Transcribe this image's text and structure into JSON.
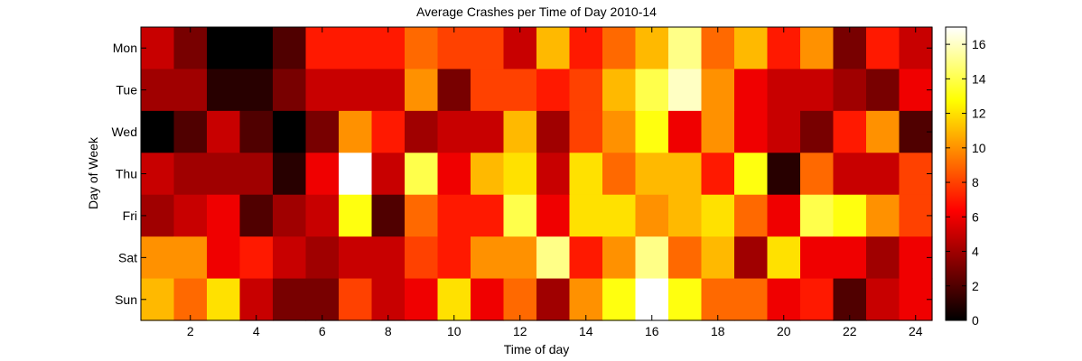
{
  "chart_data": {
    "type": "heatmap",
    "title": "Average Crashes per Time of Day 2010-14",
    "xlabel": "Time of day",
    "ylabel": "Day of Week",
    "rows": [
      "Mon",
      "Tue",
      "Wed",
      "Thu",
      "Fri",
      "Sat",
      "Sun"
    ],
    "x": [
      1,
      2,
      3,
      4,
      5,
      6,
      7,
      8,
      9,
      10,
      11,
      12,
      13,
      14,
      15,
      16,
      17,
      18,
      19,
      20,
      21,
      22,
      23,
      24
    ],
    "xticks": [
      2,
      4,
      6,
      8,
      10,
      12,
      14,
      16,
      18,
      20,
      22,
      24
    ],
    "colorbar": {
      "min": 0,
      "max": 17,
      "ticks": [
        0,
        2,
        4,
        6,
        8,
        10,
        12,
        14,
        16
      ],
      "colormap": "hot"
    },
    "values": [
      [
        5,
        3,
        0,
        0,
        2,
        7,
        7,
        7,
        9,
        8,
        8,
        5,
        11,
        7,
        9,
        11,
        15,
        9,
        11,
        7,
        10,
        3,
        7,
        5
      ],
      [
        4,
        4,
        1,
        1,
        3,
        5,
        5,
        5,
        10,
        3,
        8,
        8,
        7,
        8,
        11,
        14,
        16,
        10,
        6,
        5,
        5,
        4,
        3,
        6
      ],
      [
        0,
        2,
        5,
        2,
        0,
        3,
        10,
        7,
        4,
        5,
        5,
        11,
        4,
        8,
        10,
        13,
        6,
        10,
        6,
        5,
        3,
        7,
        10,
        2
      ],
      [
        5,
        4,
        4,
        4,
        1,
        6,
        17,
        5,
        14,
        6,
        11,
        12,
        5,
        12,
        9,
        11,
        11,
        7,
        13,
        1,
        9,
        5,
        5,
        8
      ],
      [
        4,
        5,
        6,
        2,
        4,
        5,
        13,
        2,
        9,
        7,
        7,
        14,
        6,
        12,
        12,
        10,
        11,
        12,
        9,
        6,
        14,
        13,
        10,
        8
      ],
      [
        10,
        10,
        6,
        7,
        5,
        4,
        5,
        5,
        8,
        7,
        10,
        10,
        15,
        7,
        10,
        15,
        9,
        11,
        4,
        12,
        6,
        6,
        4,
        6
      ],
      [
        11,
        9,
        12,
        5,
        3,
        3,
        8,
        5,
        6,
        12,
        6,
        9,
        4,
        10,
        13,
        17,
        13,
        9,
        9,
        6,
        7,
        2,
        5,
        6
      ]
    ]
  }
}
